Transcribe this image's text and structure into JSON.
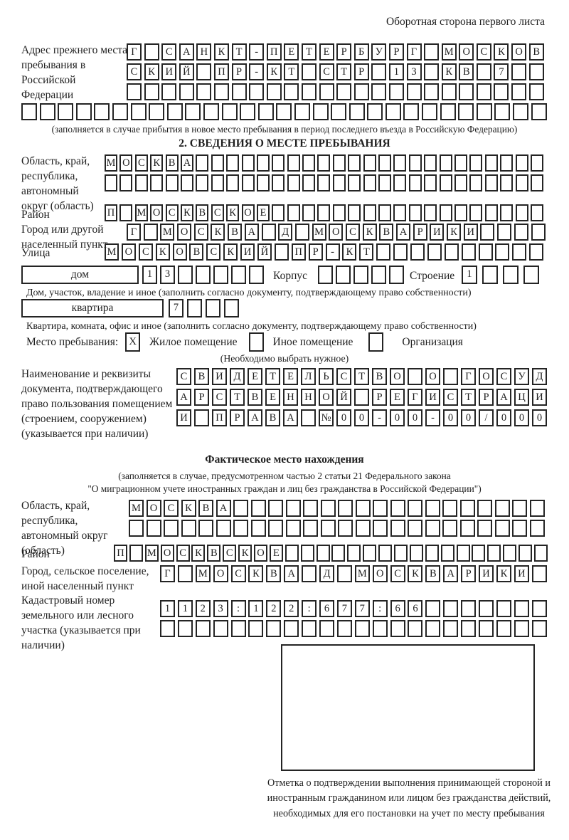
{
  "header": {
    "note": "Оборотная сторона первого листа"
  },
  "prev_address": {
    "label": "Адрес прежнего места пребывания в Российской Федерации",
    "rows": [
      {
        "text": "Г САНКТ-ПЕТЕРБУРГ МОСКОВ",
        "total": 24
      },
      {
        "text": "СКИЙ ПР-КТ СТР 13 КВ 7",
        "total": 24
      },
      {
        "text": "",
        "total": 24
      },
      {
        "text": "",
        "total": 29
      }
    ],
    "note": "(заполняется в случае прибытия в новое место пребывания в период последнего въезда в Российскую Федерацию)"
  },
  "section2": {
    "title": "2. СВЕДЕНИЯ О МЕСТЕ ПРЕБЫВАНИЯ",
    "oblast": {
      "label": "Область, край, республика, автономный округ (область)",
      "rows": [
        {
          "text": "МОСКВА",
          "total": 29
        },
        {
          "text": "",
          "total": 29
        }
      ]
    },
    "rayon": {
      "label": "Район",
      "row": {
        "text": "П МОСКВСКОЕ",
        "total": 29
      }
    },
    "gorod": {
      "label": "Город или другой населенный пункт",
      "row": {
        "text": "Г МОСКВА Д МОСКВАРИКИ",
        "total": 25
      }
    },
    "ulitsa": {
      "label": "Улица",
      "row": {
        "text": "МОСКОВСКИЙ ПР-КТ",
        "total": 26
      }
    },
    "dom": {
      "box_label": "дом",
      "row": {
        "text": "13",
        "total": 7
      },
      "korpus_label": "Корпус",
      "korpus_row": {
        "text": "",
        "total": 5
      },
      "stroenie_label": "Строение",
      "stroenie_row": {
        "text": "1",
        "total": 4
      },
      "note": "Дом, участок, владение и иное (заполнить согласно документу, подтверждающему право собственности)"
    },
    "kvartira": {
      "box_label": "квартира",
      "row": {
        "text": "7",
        "total": 4
      },
      "note": "Квартира, комната, офис и иное (заполнить согласно документу, подтверждающему право собственности)"
    },
    "stay": {
      "label": "Место пребывания:",
      "options": [
        {
          "label": "Жилое помещение",
          "mark": "X"
        },
        {
          "label": "Иное помещение",
          "mark": ""
        },
        {
          "label": "Организация",
          "mark": ""
        }
      ],
      "note": "(Необходимо выбрать нужное)"
    },
    "doc": {
      "label": "Наименование и реквизиты документа, подтверждающего право пользования помещением (строением, сооружением) (указывается при наличии)",
      "rows": [
        {
          "text": "СВИДЕТЕЛЬСТВО О ГОСУД",
          "total": 21
        },
        {
          "text": "АРСТВЕННОЙ РЕГИСТРАЦИ",
          "total": 21
        },
        {
          "text": "И ПРАВА №00-00-00/000",
          "total": 21
        }
      ]
    }
  },
  "fact": {
    "title": "Фактическое место нахождения",
    "note1": "(заполняется в случае, предусмотренном частью 2 статьи 21 Федерального закона",
    "note2": "\"О миграционном учете иностранных граждан и лиц без гражданства в Российской Федерации\")",
    "oblast": {
      "label": "Область, край, республика, автономный округ (область)",
      "rows": [
        {
          "text": "МОСКВА",
          "total": 24
        },
        {
          "text": "",
          "total": 24
        }
      ]
    },
    "rayon": {
      "label": "Район",
      "row": {
        "text": "П МОСКВСКОЕ",
        "total": 28
      }
    },
    "gorod": {
      "label": "Город, сельское поселение, иной населенный пункт",
      "row": {
        "text": "Г МОСКВА Д МОСКВАРИКИ",
        "total": 22
      }
    },
    "cadastre": {
      "label": "Кадастровый номер земельного или лесного участка (указывается при наличии)",
      "rows": [
        {
          "text": "1123:122:677:66",
          "total": 22
        },
        {
          "text": "",
          "total": 22
        }
      ]
    },
    "stamp_note": "Отметка о подтверждении выполнения принимающей стороной и иностранным гражданином или лицом без гражданства действий, необходимых для его постановки на учет по месту пребывания"
  }
}
